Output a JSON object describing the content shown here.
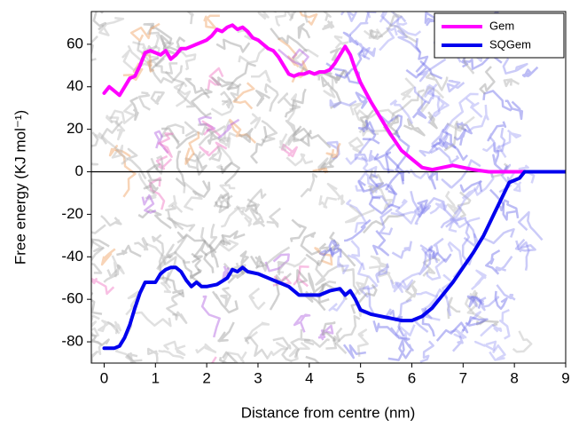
{
  "chart_data": {
    "type": "line",
    "xlabel": "Distance from centre (nm)",
    "ylabel": "Free energy (KJ mol⁻¹)",
    "xlim": [
      -0.25,
      9
    ],
    "ylim": [
      -90,
      75.4
    ],
    "xticks": [
      0,
      1,
      2,
      3,
      4,
      5,
      6,
      7,
      8,
      9
    ],
    "yticks": [
      -80,
      -60,
      -40,
      -20,
      0,
      20,
      40,
      60
    ],
    "reference_line": 0,
    "grid": false,
    "legend": "upper right",
    "series": [
      {
        "name": "Gem",
        "color": "#ff00ff",
        "x": [
          0,
          0.1,
          0.2,
          0.3,
          0.4,
          0.5,
          0.6,
          0.7,
          0.8,
          0.9,
          1.0,
          1.1,
          1.2,
          1.3,
          1.4,
          1.5,
          1.6,
          1.7,
          1.8,
          1.9,
          2.0,
          2.1,
          2.2,
          2.3,
          2.4,
          2.5,
          2.6,
          2.7,
          2.8,
          2.9,
          3.0,
          3.1,
          3.2,
          3.3,
          3.4,
          3.5,
          3.6,
          3.7,
          3.8,
          3.9,
          4.0,
          4.1,
          4.2,
          4.3,
          4.4,
          4.5,
          4.6,
          4.7,
          4.8,
          4.9,
          5.0,
          5.2,
          5.4,
          5.6,
          5.8,
          6.0,
          6.2,
          6.4,
          6.6,
          6.8,
          7.0,
          7.2,
          7.5,
          8.0,
          8.5,
          9.0
        ],
        "values": [
          37,
          40,
          38,
          36,
          40,
          44,
          45,
          50,
          56,
          57,
          56,
          55,
          57,
          53,
          55,
          58,
          58,
          59,
          60,
          61,
          62,
          64,
          67,
          66,
          68,
          69,
          67,
          68,
          66,
          63,
          62,
          60,
          58,
          57,
          54,
          50,
          46,
          45,
          46,
          46,
          47,
          46,
          47,
          47,
          48,
          51,
          55,
          59,
          55,
          48,
          42,
          33,
          25,
          17,
          10,
          6,
          2,
          1,
          2,
          3,
          2,
          1,
          0,
          0,
          0,
          0
        ]
      },
      {
        "name": "SQGem",
        "color": "#0000ee",
        "x": [
          0,
          0.2,
          0.3,
          0.4,
          0.5,
          0.6,
          0.7,
          0.8,
          0.9,
          1.0,
          1.1,
          1.2,
          1.3,
          1.4,
          1.5,
          1.6,
          1.7,
          1.8,
          1.9,
          2.0,
          2.2,
          2.4,
          2.5,
          2.6,
          2.7,
          2.8,
          3.0,
          3.2,
          3.4,
          3.6,
          3.8,
          4.0,
          4.2,
          4.4,
          4.6,
          4.7,
          4.8,
          4.9,
          5.0,
          5.2,
          5.4,
          5.6,
          5.8,
          6.0,
          6.2,
          6.4,
          6.6,
          6.8,
          7.0,
          7.2,
          7.4,
          7.6,
          7.8,
          7.9,
          8.0,
          8.1,
          8.2,
          8.5,
          9.0
        ],
        "values": [
          -83,
          -83,
          -82,
          -78,
          -72,
          -64,
          -57,
          -52,
          -52,
          -52,
          -48,
          -46,
          -45,
          -45,
          -47,
          -51,
          -54,
          -52,
          -54,
          -54,
          -53,
          -50,
          -46,
          -47,
          -45,
          -47,
          -48,
          -50,
          -52,
          -54,
          -58,
          -58,
          -58,
          -56,
          -55,
          -58,
          -56,
          -60,
          -65,
          -67,
          -68,
          -69,
          -70,
          -70,
          -68,
          -64,
          -58,
          -52,
          -45,
          -38,
          -30,
          -20,
          -10,
          -5,
          -4,
          -3,
          0,
          0,
          0
        ]
      }
    ]
  }
}
